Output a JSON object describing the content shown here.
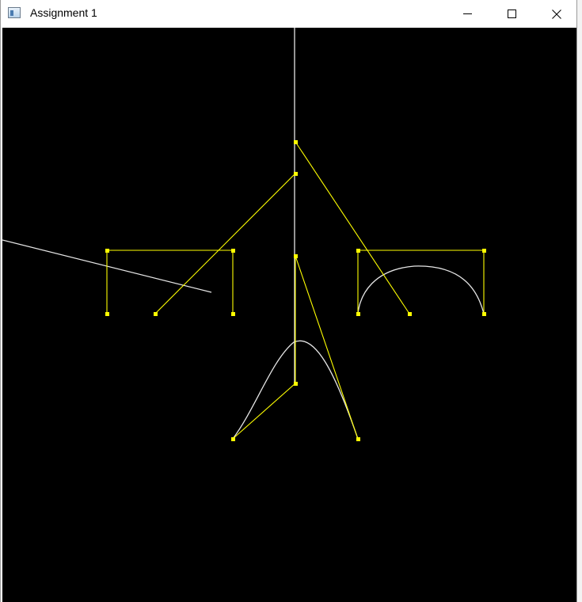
{
  "window": {
    "title": "Assignment 1",
    "icons": {
      "app": "window-app-icon",
      "minimize": "minimize-icon",
      "maximize": "maximize-icon",
      "close": "close-icon"
    }
  },
  "colors": {
    "canvas_background": "#000000",
    "control_polygon": "#ffff00",
    "control_point": "#ffff00",
    "curve": "#e6e6e6",
    "titlebar": "#ffffff"
  }
}
